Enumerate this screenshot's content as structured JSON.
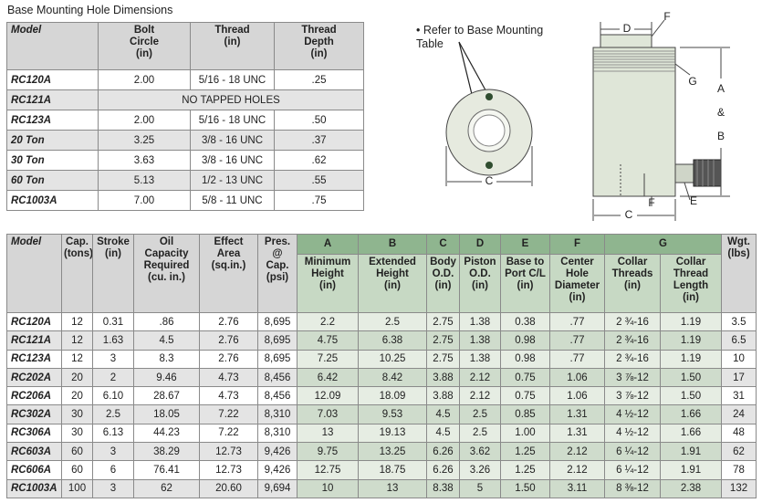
{
  "base_table": {
    "title": "Base Mounting Hole Dimensions",
    "header": [
      "Model",
      "Bolt\nCircle\n(in)",
      "Thread\n(in)",
      "Thread\nDepth\n(in)"
    ],
    "rows": [
      [
        "RC120A",
        "2.00",
        "5/16 - 18 UNC",
        ".25"
      ],
      [
        "RC121A",
        "NO TAPPED HOLES"
      ],
      [
        "RC123A",
        "2.00",
        "5/16 - 18 UNC",
        ".50"
      ],
      [
        "20 Ton",
        "3.25",
        "3/8 - 16 UNC",
        ".37"
      ],
      [
        "30 Ton",
        "3.63",
        "3/8 - 16 UNC",
        ".62"
      ],
      [
        "60 Ton",
        "5.13",
        "1/2 - 13 UNC",
        ".55"
      ],
      [
        "RC1003A",
        "7.00",
        "5/8 - 11 UNC",
        ".75"
      ]
    ]
  },
  "diagram": {
    "note": "• Refer to Base Mounting Table",
    "left_c": "C",
    "d": "D",
    "f_top": "F",
    "g": "G",
    "a": "A",
    "amp": "&",
    "b": "B",
    "f_bottom": "F",
    "e": "E",
    "c_bottom": "C"
  },
  "main_table": {
    "header": [
      "Model",
      "Cap.\n(tons)",
      "Stroke\n(in)",
      "Oil\nCapacity\nRequired\n(cu. in.)",
      "Effect\nArea\n(sq.in.)",
      "Pres.\n@\nCap.\n(psi)",
      {
        "group": "A",
        "columns": [
          "Minimum\nHeight\n(in)"
        ]
      },
      {
        "group": "B",
        "columns": [
          "Extended\nHeight\n(in)"
        ]
      },
      {
        "group": "C",
        "columns": [
          "Body\nO.D.\n(in)"
        ]
      },
      {
        "group": "D",
        "columns": [
          "Piston\nO.D.\n(in)"
        ]
      },
      {
        "group": "E",
        "columns": [
          "Base to\nPort C/L\n(in)"
        ]
      },
      {
        "group": "F",
        "columns": [
          "Center\nHole\nDiameter\n(in)"
        ]
      },
      {
        "group": "G",
        "columns": [
          "Collar\nThreads\n(in)",
          "Collar\nThread\nLength\n(in)"
        ]
      },
      "Wgt.\n(lbs)"
    ],
    "rows": [
      [
        "RC120A",
        "12",
        "0.31",
        ".86",
        "2.76",
        "8,695",
        "2.2",
        "2.5",
        "2.75",
        "1.38",
        "0.38",
        ".77",
        "2 ¾-16",
        "1.19",
        "3.5"
      ],
      [
        "RC121A",
        "12",
        "1.63",
        "4.5",
        "2.76",
        "8,695",
        "4.75",
        "6.38",
        "2.75",
        "1.38",
        "0.98",
        ".77",
        "2 ¾-16",
        "1.19",
        "6.5"
      ],
      [
        "RC123A",
        "12",
        "3",
        "8.3",
        "2.76",
        "8,695",
        "7.25",
        "10.25",
        "2.75",
        "1.38",
        "0.98",
        ".77",
        "2 ¾-16",
        "1.19",
        "10"
      ],
      [
        "RC202A",
        "20",
        "2",
        "9.46",
        "4.73",
        "8,456",
        "6.42",
        "8.42",
        "3.88",
        "2.12",
        "0.75",
        "1.06",
        "3 ⅞-12",
        "1.50",
        "17"
      ],
      [
        "RC206A",
        "20",
        "6.10",
        "28.67",
        "4.73",
        "8,456",
        "12.09",
        "18.09",
        "3.88",
        "2.12",
        "0.75",
        "1.06",
        "3 ⅞-12",
        "1.50",
        "31"
      ],
      [
        "RC302A",
        "30",
        "2.5",
        "18.05",
        "7.22",
        "8,310",
        "7.03",
        "9.53",
        "4.5",
        "2.5",
        "0.85",
        "1.31",
        "4 ½-12",
        "1.66",
        "24"
      ],
      [
        "RC306A",
        "30",
        "6.13",
        "44.23",
        "7.22",
        "8,310",
        "13",
        "19.13",
        "4.5",
        "2.5",
        "1.00",
        "1.31",
        "4 ½-12",
        "1.66",
        "48"
      ],
      [
        "RC603A",
        "60",
        "3",
        "38.29",
        "12.73",
        "9,426",
        "9.75",
        "13.25",
        "6.26",
        "3.62",
        "1.25",
        "2.12",
        "6 ¼-12",
        "1.91",
        "62"
      ],
      [
        "RC606A",
        "60",
        "6",
        "76.41",
        "12.73",
        "9,426",
        "12.75",
        "18.75",
        "6.26",
        "3.26",
        "1.25",
        "2.12",
        "6 ¼-12",
        "1.91",
        "78"
      ],
      [
        "RC1003A",
        "100",
        "3",
        "62",
        "20.60",
        "9,694",
        "10",
        "13",
        "8.38",
        "5",
        "1.50",
        "3.11",
        "8 ⅜-12",
        "2.38",
        "132"
      ]
    ]
  }
}
